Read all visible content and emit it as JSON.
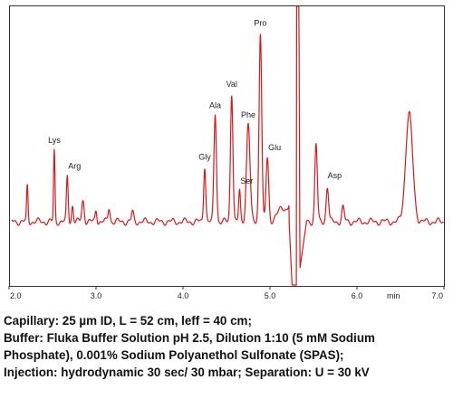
{
  "chart_data": {
    "type": "line",
    "title": "",
    "xlabel": "",
    "x_unit": "min",
    "ylabel": "",
    "xlim": [
      2.0,
      7.0
    ],
    "x_ticks": [
      "2.0",
      "3.0",
      "4.0",
      "5.0",
      "6.0",
      "7.0"
    ],
    "grid": false,
    "line_color": "#d7191c",
    "baseline": 0.25,
    "peaks": [
      {
        "label": "",
        "x": 2.21,
        "y": 0.4,
        "w": 0.008
      },
      {
        "label": "Lys",
        "x": 2.52,
        "y": 0.55,
        "w": 0.008
      },
      {
        "label": "Arg",
        "x": 2.67,
        "y": 0.44,
        "w": 0.01
      },
      {
        "label": "",
        "x": 2.73,
        "y": 0.32,
        "w": 0.01
      },
      {
        "label": "",
        "x": 2.85,
        "y": 0.34,
        "w": 0.014
      },
      {
        "label": "",
        "x": 3.0,
        "y": 0.3,
        "w": 0.01
      },
      {
        "label": "",
        "x": 3.15,
        "y": 0.31,
        "w": 0.012
      },
      {
        "label": "",
        "x": 3.42,
        "y": 0.29,
        "w": 0.012
      },
      {
        "label": "Gly",
        "x": 4.25,
        "y": 0.49,
        "w": 0.012
      },
      {
        "label": "Ala",
        "x": 4.37,
        "y": 0.71,
        "w": 0.014
      },
      {
        "label": "Val",
        "x": 4.56,
        "y": 0.8,
        "w": 0.014
      },
      {
        "label": "Ser",
        "x": 4.65,
        "y": 0.38,
        "w": 0.01
      },
      {
        "label": "Phe",
        "x": 4.75,
        "y": 0.67,
        "w": 0.02
      },
      {
        "label": "Pro",
        "x": 4.89,
        "y": 1.06,
        "w": 0.015
      },
      {
        "label": "Glu",
        "x": 4.97,
        "y": 0.52,
        "w": 0.015
      },
      {
        "label": "",
        "x": 5.28,
        "y": 0.44,
        "w": 0.035
      },
      {
        "label": "",
        "x": 5.53,
        "y": 0.58,
        "w": 0.014
      },
      {
        "label": "Asp",
        "x": 5.66,
        "y": 0.4,
        "w": 0.014
      },
      {
        "label": "",
        "x": 5.84,
        "y": 0.31,
        "w": 0.014
      },
      {
        "label": "",
        "x": 6.6,
        "y": 0.71,
        "w": 0.04
      }
    ],
    "disturbance": {
      "x_start": 5.22,
      "x_end": 5.42,
      "y_min": -0.2,
      "y_max": 1.5
    }
  },
  "caption": {
    "line1": "Capillary: 25 µm ID, L = 52 cm, leff = 40 cm;",
    "line2": "Buffer: Fluka Buffer Solution pH 2.5, Dilution 1:10 (5 mM Sodium",
    "line3": "Phosphate), 0.001% Sodium Polyanethol Sulfonate (SPAS);",
    "line4": "Injection: hydrodynamic 30 sec/ 30 mbar; Separation: U = 30 kV"
  }
}
